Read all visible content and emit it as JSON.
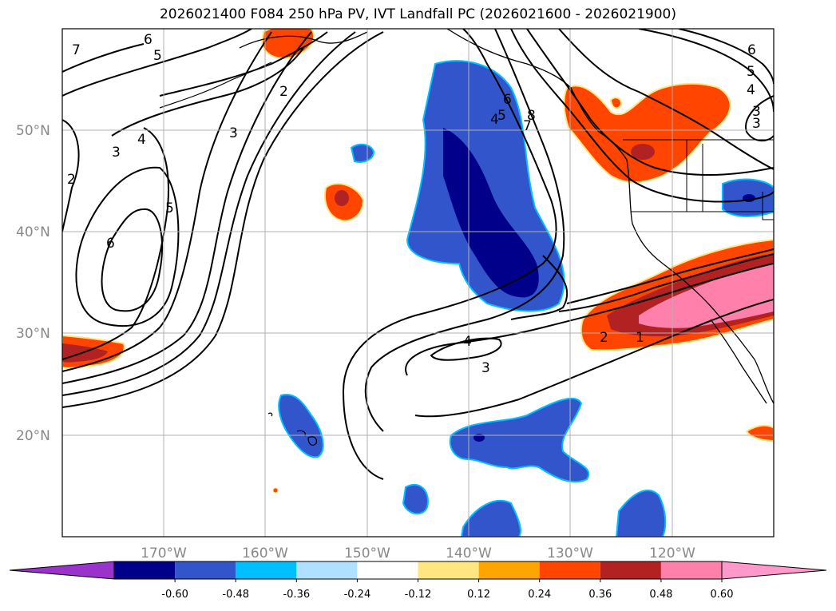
{
  "title": "2026021400 F084 250 hPa PV, IVT Landfall PC (2026021600 - 2026021900)",
  "map": {
    "lat_labels": [
      "50°N",
      "40°N",
      "30°N",
      "20°N"
    ],
    "lon_labels": [
      "170°W",
      "160°W",
      "150°W",
      "140°W",
      "130°W",
      "120°W"
    ],
    "contour_labels": [
      "7",
      "6",
      "5",
      "2",
      "3",
      "4",
      "3",
      "2",
      "6",
      "5",
      "3",
      "4",
      "3",
      "6",
      "5",
      "4",
      "7",
      "8",
      "2",
      "1",
      "5",
      "4",
      "3",
      "6"
    ],
    "colors": {
      "land_outline": "#000000",
      "grid": "#b0b0b0"
    }
  },
  "colorbar": {
    "ticks": [
      "-0.60",
      "-0.48",
      "-0.36",
      "-0.24",
      "-0.12",
      "0.12",
      "0.24",
      "0.36",
      "0.48",
      "0.60"
    ],
    "colors": [
      "#9933cc",
      "#00008b",
      "#3355cc",
      "#00bfff",
      "#b0e0ff",
      "#ffffff",
      "#ffe680",
      "#ffa500",
      "#ff4500",
      "#b22222",
      "#ff80aa",
      "#ff99cc"
    ]
  }
}
